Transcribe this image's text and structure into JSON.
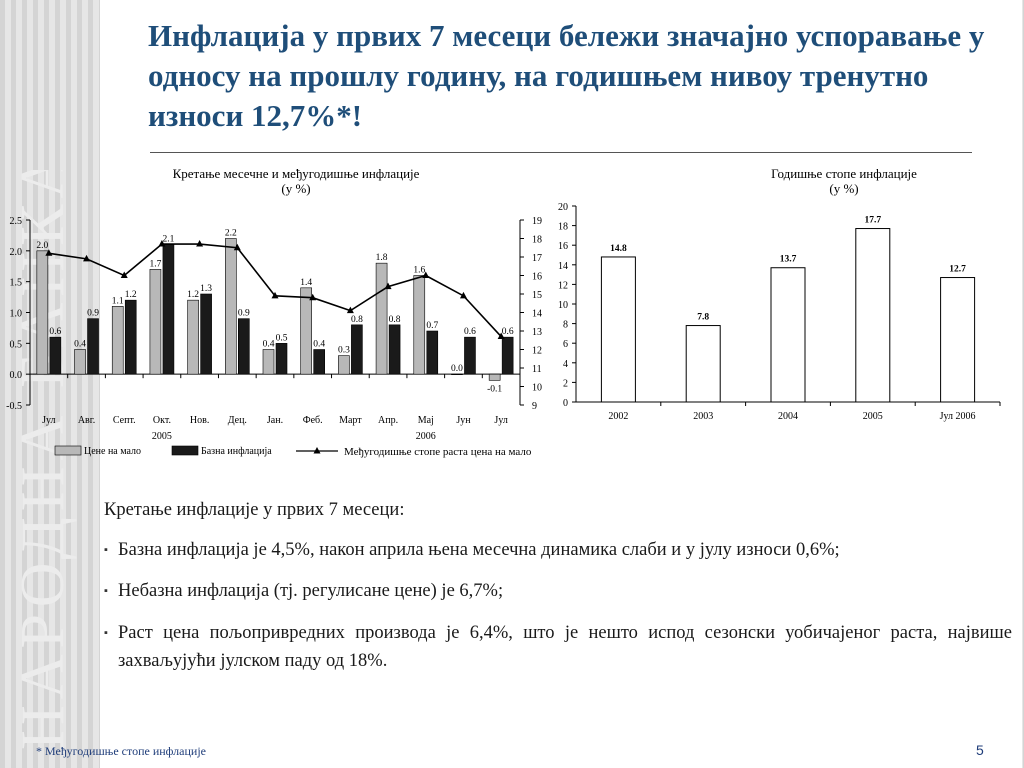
{
  "slide": {
    "title": "Инфлација у првих 7 месеци бележи значајно успоравање у односу на прошлу годину, на годишњем нивоу тренутно износи 12,7%*!",
    "seal_text": "НАРОДНА БАНКА СРБИЈЕ",
    "footnote": "* Међугодишње стопе инфлације",
    "page_number": "5",
    "colors": {
      "title": "#1f4e79",
      "retail_bar": "#b8b8b8",
      "core_bar": "#1a1a1a",
      "line": "#000000"
    }
  },
  "text": {
    "intro": "Кретање инфлације у првих 7 месеци:",
    "bullets": [
      "Базна инфлација је 4,5%, након априла њена месечна динамика слаби и у јулу износи 0,6%;",
      "Небазна инфлација (тј. регулисане цене) је 6,7%;",
      "Раст цена пољопривредних производа је 6,4%, што је нешто испод сезонски уобичајеног раста, највише захваљујући јулском паду од 18%."
    ]
  },
  "chart_data": [
    {
      "type": "bar",
      "title": "Кретање месечне и међугодишње инфлације",
      "subtitle": "(у %)",
      "categories": [
        "Јул",
        "Авг.",
        "Септ.",
        "Окт.",
        "Нов.",
        "Дец.",
        "Јан.",
        "Феб.",
        "Март",
        "Апр.",
        "Мај",
        "Јун",
        "Јул"
      ],
      "year_labels": [
        {
          "label": "2005",
          "category_index": 3
        },
        {
          "label": "2006",
          "category_index": 10
        }
      ],
      "ylim": [
        -0.5,
        2.5
      ],
      "yticks": [
        "-0.5",
        "0.0",
        "0.5",
        "1.0",
        "1.5",
        "2.0",
        "2.5"
      ],
      "y2lim": [
        9,
        19
      ],
      "y2ticks": [
        "9",
        "10",
        "11",
        "12",
        "13",
        "14",
        "15",
        "16",
        "17",
        "18",
        "19"
      ],
      "series": [
        {
          "name": "Цене на мало",
          "kind": "bar",
          "color": "#b8b8b8",
          "values": [
            2.0,
            0.4,
            1.1,
            1.7,
            1.2,
            2.2,
            0.4,
            1.4,
            0.3,
            1.8,
            1.6,
            0.0,
            -0.1
          ],
          "labels": [
            "2.0",
            "0.4",
            "1.1",
            "1.7",
            "1.2",
            "2.2",
            "0.4",
            "1.4",
            "0.3",
            "1.8",
            "1.6",
            "0.0",
            "-0.1"
          ]
        },
        {
          "name": "Базна инфлација",
          "kind": "bar",
          "color": "#1a1a1a",
          "values": [
            0.6,
            0.9,
            1.2,
            2.1,
            1.3,
            0.9,
            0.5,
            0.4,
            0.8,
            0.8,
            0.7,
            0.6,
            0.6
          ],
          "labels": [
            "0.6",
            "0.9",
            "1.2",
            "2.1",
            "1.3",
            "0.9",
            "0.5",
            "0.4",
            "0.8",
            "0.8",
            "0.7",
            "0.6",
            "0.6"
          ]
        },
        {
          "name": "Међугодишње стопе раста цена на мало",
          "kind": "line",
          "axis": "right",
          "color": "#000000",
          "values": [
            17.2,
            16.9,
            16.0,
            17.7,
            17.7,
            17.5,
            14.9,
            14.8,
            14.1,
            15.4,
            16.0,
            14.9,
            12.7
          ]
        }
      ],
      "legend_position": "bottom"
    },
    {
      "type": "bar",
      "title": "Годишње стопе инфлације",
      "subtitle": "(у %)",
      "categories": [
        "2002",
        "2003",
        "2004",
        "2005",
        "Јул 2006"
      ],
      "values": [
        14.8,
        7.8,
        13.7,
        17.7,
        12.7
      ],
      "labels": [
        "14.8",
        "7.8",
        "13.7",
        "17.7",
        "12.7"
      ],
      "ylim": [
        0,
        20
      ],
      "yticks": [
        "0",
        "2",
        "4",
        "6",
        "8",
        "10",
        "12",
        "14",
        "16",
        "18",
        "20"
      ]
    }
  ]
}
